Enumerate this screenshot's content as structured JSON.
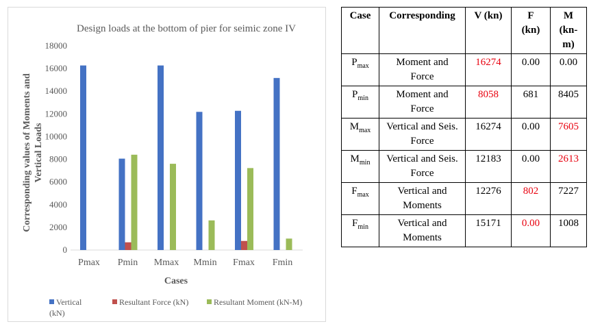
{
  "chart_data": {
    "type": "bar",
    "title": "Design loads at the bottom of pier for seimic zone IV",
    "xlabel": "Cases",
    "ylabel_line1": "Corresponding values of Moments and",
    "ylabel_line2": "Vertical Loads",
    "categories": [
      "Pmax",
      "Pmin",
      "Mmax",
      "Mmin",
      "Fmax",
      "Fmin"
    ],
    "ylim": [
      0,
      18000
    ],
    "yticks": [
      0,
      2000,
      4000,
      6000,
      8000,
      10000,
      12000,
      14000,
      16000,
      18000
    ],
    "grid": false,
    "legend_position": "bottom",
    "series": [
      {
        "name": "Vertical (kN)",
        "legend_line1": "Vertical",
        "legend_line2": "(kN)",
        "color": "#4472c4",
        "values": [
          16274,
          8058,
          16274,
          12183,
          12276,
          15171
        ]
      },
      {
        "name": "Resultant Force (kN)",
        "color": "#c0504d",
        "values": [
          0,
          681,
          0,
          0,
          802,
          0
        ]
      },
      {
        "name": "Resultant Moment (kN-M)",
        "color": "#9bbb59",
        "values": [
          0,
          8405,
          7605,
          2613,
          7227,
          1008
        ]
      }
    ]
  },
  "table": {
    "headers": {
      "case": "Case",
      "corresponding": "Corresponding",
      "v": "V (kn)",
      "f_line1": "F",
      "f_line2": "(kn)",
      "m_line1": "M",
      "m_line2": "(kn-",
      "m_line3": "m)"
    },
    "rows": [
      {
        "case_base": "P",
        "case_sub": "max",
        "corr_line1": "Moment and",
        "corr_line2": "Force",
        "v": "16274",
        "f": "0.00",
        "m": "0.00",
        "red": "v"
      },
      {
        "case_base": "P",
        "case_sub": "min",
        "corr_line1": "Moment and",
        "corr_line2": "Force",
        "v": "8058",
        "f": "681",
        "m": "8405",
        "red": "v"
      },
      {
        "case_base": "M",
        "case_sub": "max",
        "corr_line1": "Vertical and Seis.",
        "corr_line2": "Force",
        "v": "16274",
        "f": "0.00",
        "m": "7605",
        "red": "m"
      },
      {
        "case_base": "M",
        "case_sub": "min",
        "corr_line1": "Vertical and Seis.",
        "corr_line2": "Force",
        "v": "12183",
        "f": "0.00",
        "m": "2613",
        "red": "m"
      },
      {
        "case_base": "F",
        "case_sub": "max",
        "corr_line1": "Vertical and",
        "corr_line2": "Moments",
        "v": "12276",
        "f": "802",
        "m": "7227",
        "red": "f"
      },
      {
        "case_base": "F",
        "case_sub": "min",
        "corr_line1": "Vertical and",
        "corr_line2": "Moments",
        "v": "15171",
        "f": "0.00",
        "m": "1008",
        "red": "f"
      }
    ]
  }
}
